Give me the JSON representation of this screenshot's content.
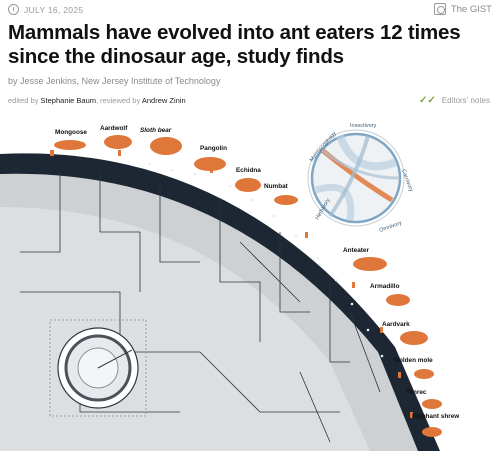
{
  "header": {
    "date": "JULY 16, 2025",
    "gist_label": "The GIST"
  },
  "article": {
    "title": "Mammals have evolved into ant eaters 12 times since the dinosaur age, study finds",
    "byline": "by Jesse Jenkins, New Jersey Institute of Technology",
    "edited_prefix": "edited by",
    "editor": "Stephanie Baum",
    "reviewed_prefix": ", reviewed by",
    "reviewer": "Andrew Zinin",
    "notes_label": "Editors' notes"
  },
  "figure": {
    "species_labels": [
      "Mongoose",
      "Aardwolf",
      "Sloth bear",
      "Pangolin",
      "Echidna",
      "Numbat",
      "Anteater",
      "Armadillo",
      "Aardvark",
      "Golden mole",
      "Tenrec",
      "Elephant shrew"
    ],
    "chord_labels": [
      "Insectivory",
      "Carnivory",
      "Omnivory",
      "Herbivory",
      "Myrmecophagy"
    ],
    "colors": {
      "accent_orange": "#e0773a",
      "tree_dark": "#1c2733",
      "tree_grey": "#cfd2d5",
      "chord_blue": "#7fa6c4"
    }
  }
}
